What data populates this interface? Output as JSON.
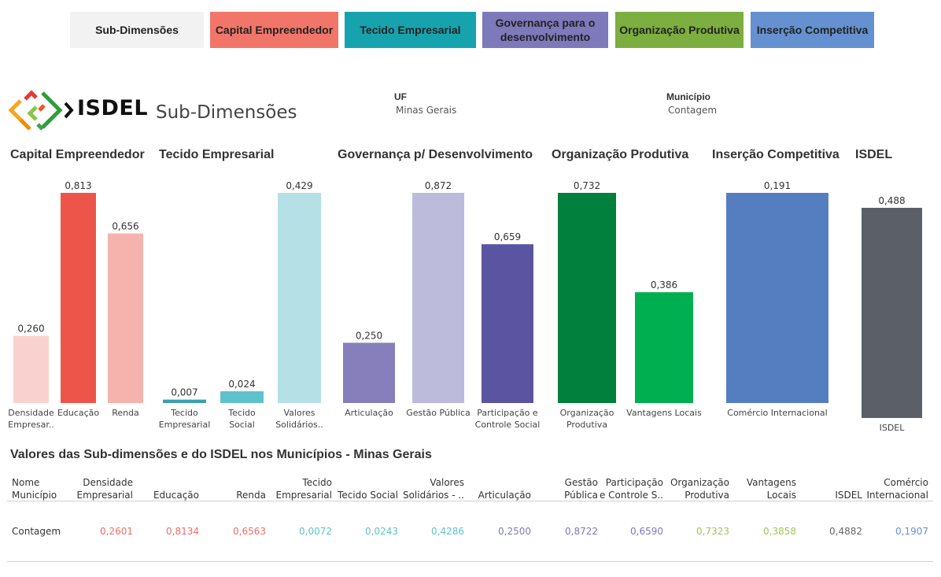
{
  "nav": {
    "buttons": [
      {
        "label": "Sub-Dimensões",
        "color": "#f2f2f2"
      },
      {
        "label": "Capital Empreendedor",
        "color": "#f2756a"
      },
      {
        "label": "Tecido Empresarial",
        "color": "#16a3ae"
      },
      {
        "label": "Governança para  o desenvolvimento",
        "color": "#7d79bb"
      },
      {
        "label": "Organização Produtiva",
        "color": "#7caf3f"
      },
      {
        "label": "Inserção Competitiva",
        "color": "#6591d0"
      }
    ]
  },
  "header": {
    "logo_text": "ISDEL",
    "title": "Sub-Dimensões"
  },
  "filters": {
    "uf_label": "UF",
    "uf_value": "Minas Gerais",
    "municipio_label": "Município",
    "municipio_value": "Contagem"
  },
  "chart_data": {
    "type": "bar",
    "title": "Sub-Dimensões",
    "panels": [
      {
        "title": "Capital Empreendedor",
        "categories": [
          "Densidade Empresar..",
          "Educação",
          "Renda"
        ],
        "values": [
          0.26,
          0.813,
          0.656
        ],
        "labels": [
          "0,260",
          "0,813",
          "0,656"
        ],
        "colors": [
          "#f9d2d0",
          "#ed554a",
          "#f6b3ae"
        ]
      },
      {
        "title": "Tecido Empresarial",
        "categories": [
          "Tecido Empresarial",
          "Tecido Social",
          "Valores Solidários.."
        ],
        "values": [
          0.007,
          0.024,
          0.429
        ],
        "labels": [
          "0,007",
          "0,024",
          "0,429"
        ],
        "colors": [
          "#3aa1ae",
          "#5ec2cc",
          "#b4e0e6"
        ]
      },
      {
        "title": "Governança p/ Desenvolvimento",
        "categories": [
          "Articulação",
          "Gestão Pública",
          "Participação e Controle Social"
        ],
        "values": [
          0.25,
          0.872,
          0.659
        ],
        "labels": [
          "0,250",
          "0,872",
          "0,659"
        ],
        "colors": [
          "#877fbc",
          "#bcbbdc",
          "#5b55a1"
        ]
      },
      {
        "title": "Organização Produtiva",
        "categories": [
          "Organização Produtiva",
          "Vantagens Locais"
        ],
        "values": [
          0.732,
          0.386
        ],
        "labels": [
          "0,732",
          "0,386"
        ],
        "colors": [
          "#00803c",
          "#00b050"
        ]
      },
      {
        "title": "Inserção Competitiva",
        "categories": [
          "Comércio Internacional"
        ],
        "values": [
          0.191
        ],
        "labels": [
          "0,191"
        ],
        "colors": [
          "#557ec1"
        ]
      },
      {
        "title": "ISDEL",
        "categories": [
          "ISDEL"
        ],
        "values": [
          0.488
        ],
        "labels": [
          "0,488"
        ],
        "colors": [
          "#5b5f68"
        ]
      }
    ],
    "scale": "each panel scaled independently to its own maximum",
    "grid": false,
    "legend": "none"
  },
  "table": {
    "title": "Valores das Sub-dimensões e do ISDEL nos Municípios - Minas Gerais",
    "headers": [
      [
        "Nome",
        "Município"
      ],
      [
        "Densidade",
        "Empresarial"
      ],
      [
        "",
        "Educação"
      ],
      [
        "",
        "Renda"
      ],
      [
        "Tecido",
        "Empresarial"
      ],
      [
        "",
        "Tecido Social"
      ],
      [
        "Valores",
        "Solidários - .."
      ],
      [
        "",
        "Articulação"
      ],
      [
        "Gestão",
        "Pública"
      ],
      [
        "Participação",
        "e Controle S.."
      ],
      [
        "Organização",
        "Produtiva"
      ],
      [
        "Vantagens",
        "Locais"
      ],
      [
        "",
        "ISDEL"
      ],
      [
        "Comércio",
        "Internacional"
      ]
    ],
    "rows": [
      {
        "name": "Contagem",
        "values": [
          "0,2601",
          "0,8134",
          "0,6563",
          "0,0072",
          "0,0243",
          "0,4286",
          "0,2500",
          "0,8722",
          "0,6590",
          "0,7323",
          "0,3858",
          "0,4882",
          "0,1907"
        ],
        "colors": [
          "#ee6f68",
          "#ee6f68",
          "#ee6f68",
          "#5ec2cc",
          "#5ec2cc",
          "#5ec2cc",
          "#7d79bb",
          "#7d79bb",
          "#7d79bb",
          "#a2c45a",
          "#a2c45a",
          "#666666",
          "#6591d0"
        ]
      }
    ]
  }
}
